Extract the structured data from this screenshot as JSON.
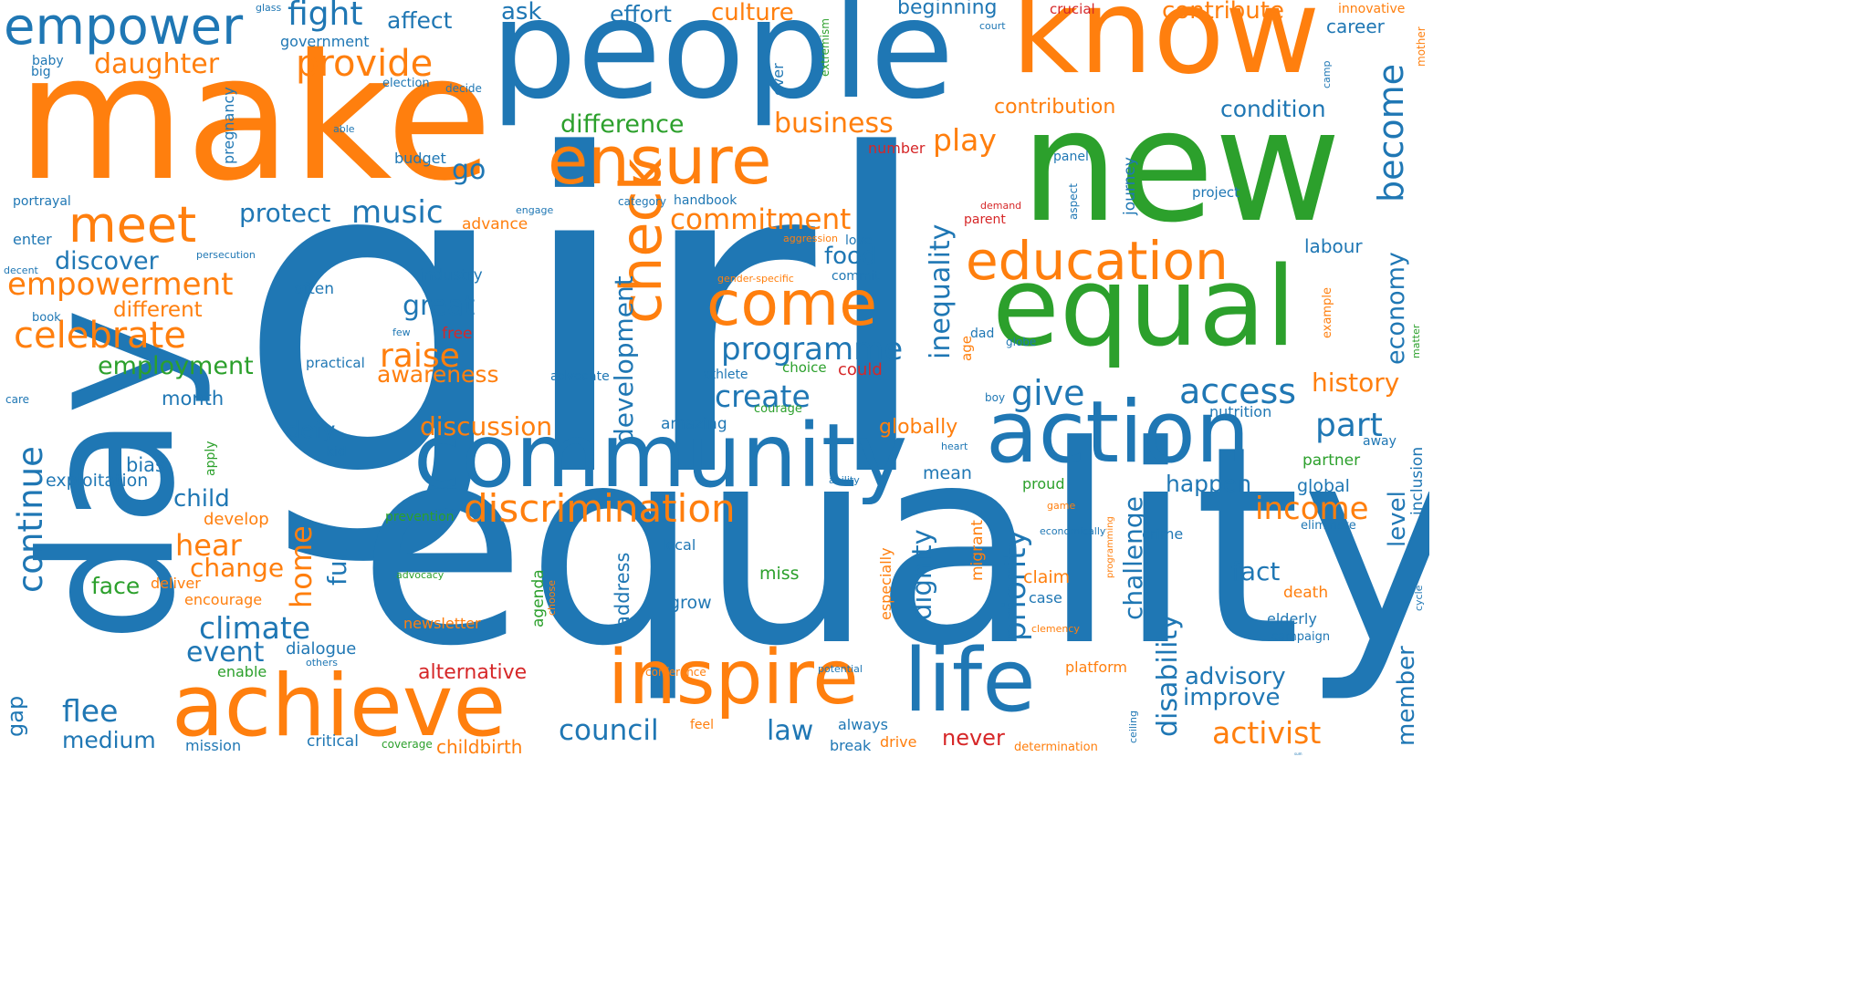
{
  "wordcloud": {
    "words": [
      "girl",
      "equality",
      "make",
      "people",
      "know",
      "new",
      "equal",
      "day",
      "community",
      "action",
      "life",
      "achieve",
      "inspire",
      "ensure",
      "come",
      "check",
      "education",
      "empower",
      "meet",
      "discrimination",
      "empowerment",
      "celebrate",
      "daughter",
      "provide",
      "fight",
      "affect",
      "ask",
      "effort",
      "culture",
      "beginning",
      "contribute",
      "contribution",
      "condition",
      "difference",
      "business",
      "play",
      "become",
      "music",
      "protect",
      "go",
      "commitment",
      "discover",
      "different",
      "employment",
      "great",
      "raise",
      "awareness",
      "programme",
      "create",
      "give",
      "access",
      "part",
      "history",
      "economy",
      "inequality",
      "development",
      "food",
      "labour",
      "continue",
      "climate",
      "event",
      "change",
      "hear",
      "home",
      "full",
      "discussion",
      "income",
      "level",
      "happen",
      "priority",
      "challenge",
      "dignity",
      "disability",
      "advisory",
      "improve",
      "fact",
      "activist",
      "member",
      "council",
      "law",
      "medium",
      "flee",
      "gap",
      "alternative",
      "childbirth",
      "never",
      "platform",
      "mission",
      "critical",
      "mean",
      "globally",
      "defy",
      "month",
      "bias",
      "exploitation",
      "child",
      "develop",
      "face",
      "deliver",
      "encourage",
      "dialogue",
      "enable",
      "industry",
      "often",
      "practical",
      "free",
      "could",
      "amazing",
      "kid",
      "apply",
      "global",
      "partner",
      "proud",
      "address",
      "grow",
      "local",
      "miss",
      "agenda",
      "claim",
      "case",
      "death",
      "elderly",
      "campaign",
      "nutrition",
      "away",
      "inclusion",
      "eliminate",
      "crime",
      "migrant",
      "especially",
      "newsletter",
      "conference",
      "determination",
      "drive",
      "break",
      "always",
      "feel",
      "potential",
      "ceiling",
      "coverage",
      "advocacy",
      "prevention",
      "choose",
      "clemency",
      "game",
      "economically",
      "programming",
      "cycle",
      "matter",
      "example",
      "globe",
      "dad",
      "age",
      "boy",
      "heart",
      "ability",
      "courage",
      "athlete",
      "advocate",
      "choice",
      "few",
      "book",
      "care",
      "decent",
      "enter",
      "portrayal",
      "able",
      "pregnancy",
      "baby",
      "big",
      "glass",
      "government",
      "election",
      "decide",
      "budget",
      "number",
      "extremism",
      "court",
      "ever",
      "crucial",
      "innovative",
      "career",
      "mother",
      "camp",
      "project",
      "panel",
      "journey",
      "aspect",
      "demand",
      "parent",
      "category",
      "handbook",
      "engage",
      "advance",
      "aggression",
      "love",
      "commit",
      "gender-specific",
      "persecution",
      "others",
      "sum"
    ]
  }
}
